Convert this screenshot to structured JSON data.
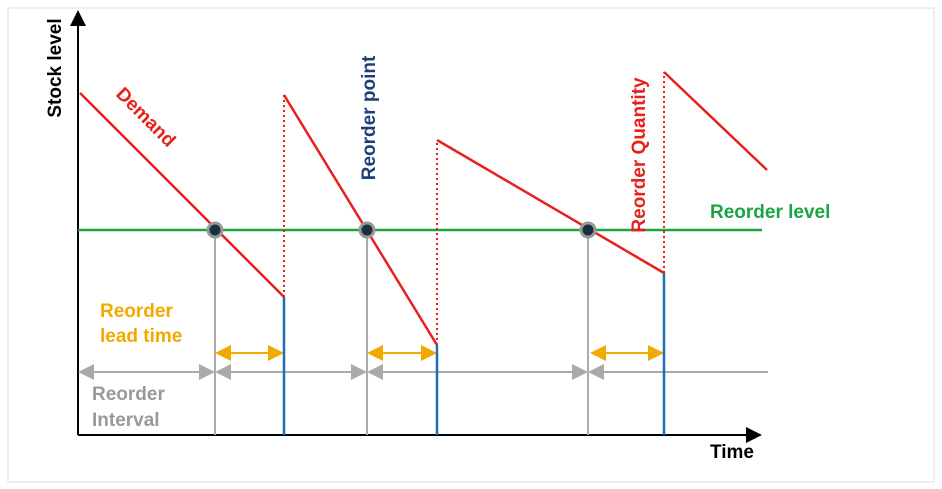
{
  "axes": {
    "y_label": "Stock level",
    "x_label": "Time"
  },
  "labels": {
    "demand": "Demand",
    "reorder_point": "Reorder point",
    "reorder_quantity": "Reorder Quantity",
    "reorder_level": "Reorder level",
    "lead_time": [
      "Reorder",
      "lead time"
    ],
    "interval": [
      "Reorder",
      "Interval"
    ]
  }
}
